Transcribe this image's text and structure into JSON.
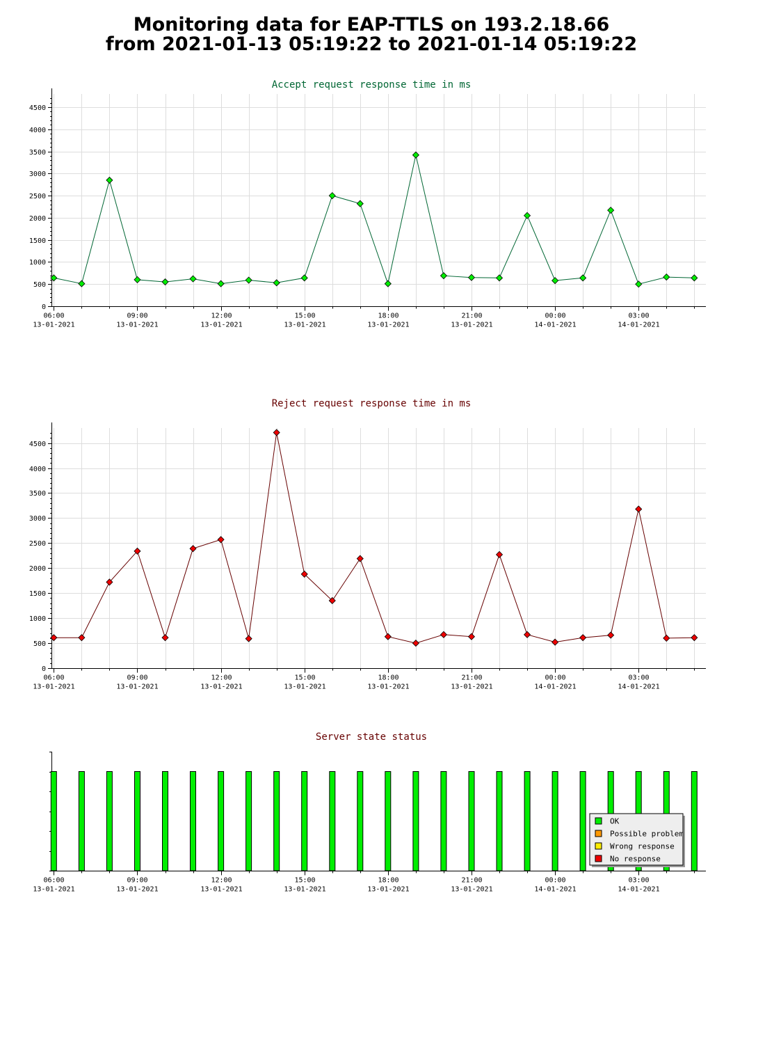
{
  "page": {
    "title_line1": "Monitoring data for EAP-TTLS on 193.2.18.66",
    "title_line2": "from 2021-01-13 05:19:22 to 2021-01-14 05:19:22"
  },
  "colors": {
    "accept_title": "#006633",
    "reject_title": "#660000",
    "status_title": "#660000",
    "accept_line": "#006633",
    "accept_marker": "#00ee00",
    "reject_line": "#660000",
    "reject_marker": "#ee0000",
    "grid": "#dddddd",
    "ok": "#00ee00",
    "possible_problem": "#ff9900",
    "wrong_response": "#ffee00",
    "no_response": "#ee0000"
  },
  "x_axis_ticks": [
    {
      "time": "06:00",
      "date": "13-01-2021"
    },
    {
      "time": "09:00",
      "date": "13-01-2021"
    },
    {
      "time": "12:00",
      "date": "13-01-2021"
    },
    {
      "time": "15:00",
      "date": "13-01-2021"
    },
    {
      "time": "18:00",
      "date": "13-01-2021"
    },
    {
      "time": "21:00",
      "date": "13-01-2021"
    },
    {
      "time": "00:00",
      "date": "14-01-2021"
    },
    {
      "time": "03:00",
      "date": "14-01-2021"
    }
  ],
  "legend": {
    "ok": "OK",
    "possible_problem": "Possible problem",
    "wrong_response": "Wrong response",
    "no_response": "No response"
  },
  "chart_data": [
    {
      "type": "line",
      "title": "Accept request response time in ms",
      "xlabel": "",
      "ylabel": "",
      "ylim": [
        0,
        4800
      ],
      "yticks": [
        0,
        500,
        1000,
        1500,
        2000,
        2500,
        3000,
        3500,
        4000,
        4500
      ],
      "grid": true,
      "x_range": [
        "2021-01-13 05:55",
        "2021-01-14 05:25"
      ],
      "x": [
        "2021-01-13 06:00",
        "2021-01-13 07:00",
        "2021-01-13 08:00",
        "2021-01-13 09:00",
        "2021-01-13 10:00",
        "2021-01-13 11:00",
        "2021-01-13 12:00",
        "2021-01-13 13:00",
        "2021-01-13 14:00",
        "2021-01-13 15:00",
        "2021-01-13 16:00",
        "2021-01-13 17:00",
        "2021-01-13 18:00",
        "2021-01-13 19:00",
        "2021-01-13 20:00",
        "2021-01-13 21:00",
        "2021-01-13 22:00",
        "2021-01-13 23:00",
        "2021-01-14 00:00",
        "2021-01-14 01:00",
        "2021-01-14 02:00",
        "2021-01-14 03:00",
        "2021-01-14 04:00",
        "2021-01-14 05:00"
      ],
      "values": [
        640,
        510,
        2850,
        600,
        550,
        620,
        510,
        590,
        530,
        640,
        2500,
        2320,
        510,
        3420,
        690,
        650,
        640,
        2050,
        580,
        640,
        2170,
        500,
        660,
        640
      ]
    },
    {
      "type": "line",
      "title": "Reject request response time in ms",
      "xlabel": "",
      "ylabel": "",
      "ylim": [
        0,
        4800
      ],
      "yticks": [
        0,
        500,
        1000,
        1500,
        2000,
        2500,
        3000,
        3500,
        4000,
        4500
      ],
      "grid": true,
      "x_range": [
        "2021-01-13 05:55",
        "2021-01-14 05:25"
      ],
      "x": [
        "2021-01-13 06:00",
        "2021-01-13 07:00",
        "2021-01-13 08:00",
        "2021-01-13 09:00",
        "2021-01-13 10:00",
        "2021-01-13 11:00",
        "2021-01-13 12:00",
        "2021-01-13 13:00",
        "2021-01-13 14:00",
        "2021-01-13 15:00",
        "2021-01-13 16:00",
        "2021-01-13 17:00",
        "2021-01-13 18:00",
        "2021-01-13 19:00",
        "2021-01-13 20:00",
        "2021-01-13 21:00",
        "2021-01-13 22:00",
        "2021-01-13 23:00",
        "2021-01-14 00:00",
        "2021-01-14 01:00",
        "2021-01-14 02:00",
        "2021-01-14 03:00",
        "2021-01-14 04:00",
        "2021-01-14 05:00"
      ],
      "values": [
        610,
        610,
        1720,
        2340,
        610,
        2390,
        2570,
        590,
        4710,
        1880,
        1350,
        2190,
        630,
        500,
        670,
        630,
        2270,
        670,
        520,
        610,
        660,
        3180,
        600,
        610
      ]
    },
    {
      "type": "bar",
      "title": "Server state status",
      "xlabel": "",
      "ylabel": "",
      "legend_position": "bottom-right",
      "x_range": [
        "2021-01-13 05:55",
        "2021-01-14 05:25"
      ],
      "x": [
        "2021-01-13 06:00",
        "2021-01-13 07:00",
        "2021-01-13 08:00",
        "2021-01-13 09:00",
        "2021-01-13 10:00",
        "2021-01-13 11:00",
        "2021-01-13 12:00",
        "2021-01-13 13:00",
        "2021-01-13 14:00",
        "2021-01-13 15:00",
        "2021-01-13 16:00",
        "2021-01-13 17:00",
        "2021-01-13 18:00",
        "2021-01-13 19:00",
        "2021-01-13 20:00",
        "2021-01-13 21:00",
        "2021-01-13 22:00",
        "2021-01-13 23:00",
        "2021-01-14 00:00",
        "2021-01-14 01:00",
        "2021-01-14 02:00",
        "2021-01-14 03:00",
        "2021-01-14 04:00",
        "2021-01-14 05:00"
      ],
      "status": [
        "OK",
        "OK",
        "OK",
        "OK",
        "OK",
        "OK",
        "OK",
        "OK",
        "OK",
        "OK",
        "OK",
        "OK",
        "OK",
        "OK",
        "OK",
        "OK",
        "OK",
        "OK",
        "OK",
        "OK",
        "OK",
        "OK",
        "OK",
        "OK"
      ]
    }
  ]
}
